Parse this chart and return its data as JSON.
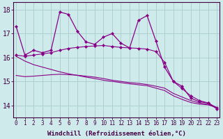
{
  "xlabel": "Windchill (Refroidissement éolien,°C)",
  "bg_color": "#ceeaea",
  "line_color": "#880088",
  "grid_color": "#aacccc",
  "hours": [
    0,
    1,
    2,
    3,
    4,
    5,
    6,
    7,
    8,
    9,
    10,
    11,
    12,
    13,
    14,
    15,
    16,
    17,
    18,
    19,
    20,
    21,
    22,
    23
  ],
  "series1": [
    17.3,
    16.1,
    16.3,
    16.2,
    16.3,
    17.9,
    17.8,
    17.1,
    16.65,
    16.55,
    16.85,
    17.0,
    16.6,
    16.4,
    17.55,
    17.75,
    16.7,
    15.6,
    15.0,
    14.8,
    14.3,
    14.15,
    14.1,
    13.85
  ],
  "series2": [
    16.1,
    16.05,
    16.1,
    16.15,
    16.2,
    16.3,
    16.38,
    16.42,
    16.46,
    16.48,
    16.5,
    16.46,
    16.42,
    16.4,
    16.38,
    16.35,
    16.25,
    15.8,
    15.0,
    14.7,
    14.4,
    14.2,
    14.1,
    13.9
  ],
  "series3": [
    15.25,
    15.2,
    15.22,
    15.25,
    15.28,
    15.3,
    15.28,
    15.26,
    15.22,
    15.18,
    15.12,
    15.05,
    15.0,
    14.95,
    14.92,
    14.87,
    14.8,
    14.72,
    14.5,
    14.35,
    14.2,
    14.1,
    14.05,
    13.9
  ],
  "series4": [
    16.05,
    15.85,
    15.7,
    15.6,
    15.5,
    15.4,
    15.32,
    15.25,
    15.18,
    15.12,
    15.05,
    15.0,
    14.95,
    14.9,
    14.86,
    14.82,
    14.72,
    14.62,
    14.4,
    14.25,
    14.12,
    14.05,
    14.02,
    13.9
  ],
  "ylim": [
    13.5,
    18.3
  ],
  "yticks": [
    14,
    15,
    16,
    17,
    18
  ],
  "xticks": [
    0,
    1,
    2,
    3,
    4,
    5,
    6,
    7,
    8,
    9,
    10,
    11,
    12,
    13,
    14,
    15,
    16,
    17,
    18,
    19,
    20,
    21,
    22,
    23
  ],
  "fontsize_xlabel": 6.5,
  "fontsize_yticks": 7,
  "fontsize_xticks": 5.5
}
